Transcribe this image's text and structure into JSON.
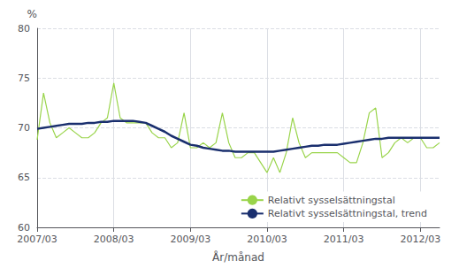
{
  "chart_data": {
    "type": "line",
    "xlabel": "År/månad",
    "ylabel": "%",
    "categories": [
      "2007/03",
      null,
      null,
      null,
      null,
      null,
      null,
      null,
      null,
      null,
      null,
      null,
      "2008/03",
      null,
      null,
      null,
      null,
      null,
      null,
      null,
      null,
      null,
      null,
      null,
      "2009/03",
      null,
      null,
      null,
      null,
      null,
      null,
      null,
      null,
      null,
      null,
      null,
      "2010/03",
      null,
      null,
      null,
      null,
      null,
      null,
      null,
      null,
      null,
      null,
      null,
      "2011/03",
      null,
      null,
      null,
      null,
      null,
      null,
      null,
      null,
      null,
      null,
      null,
      "2012/03",
      null,
      null,
      null
    ],
    "series": [
      {
        "name": "Relativt sysselsättningstal",
        "color": "#99d44a",
        "values": [
          68.8,
          73.5,
          70.5,
          69.0,
          69.5,
          70.0,
          69.5,
          69.0,
          69.0,
          69.5,
          70.5,
          71.0,
          74.5,
          71.0,
          70.5,
          70.5,
          70.5,
          70.5,
          69.5,
          69.0,
          69.0,
          68.0,
          68.5,
          71.5,
          68.0,
          68.0,
          68.5,
          68.0,
          68.5,
          71.5,
          68.5,
          67.0,
          67.0,
          67.5,
          67.5,
          66.5,
          65.5,
          67.0,
          65.5,
          67.5,
          71.0,
          68.5,
          67.0,
          67.5,
          67.5,
          67.5,
          67.5,
          67.5,
          67.0,
          66.5,
          66.5,
          68.5,
          71.5,
          72.0,
          67.0,
          67.5,
          68.5,
          69.0,
          68.5,
          69.0,
          69.0,
          68.0,
          68.0,
          68.5
        ]
      },
      {
        "name": "Relativt sysselsättningstal, trend",
        "color": "#1a2f6e",
        "values": [
          69.9,
          70.0,
          70.1,
          70.2,
          70.3,
          70.4,
          70.4,
          70.4,
          70.5,
          70.5,
          70.6,
          70.6,
          70.7,
          70.7,
          70.7,
          70.7,
          70.6,
          70.5,
          70.2,
          69.9,
          69.6,
          69.2,
          68.9,
          68.6,
          68.3,
          68.2,
          68.0,
          67.9,
          67.8,
          67.7,
          67.7,
          67.6,
          67.6,
          67.6,
          67.6,
          67.6,
          67.6,
          67.6,
          67.7,
          67.8,
          67.9,
          68.0,
          68.1,
          68.2,
          68.2,
          68.3,
          68.3,
          68.3,
          68.4,
          68.5,
          68.6,
          68.7,
          68.8,
          68.9,
          68.9,
          69.0,
          69.0,
          69.0,
          69.0,
          69.0,
          69.0,
          69.0,
          69.0,
          69.0
        ]
      }
    ],
    "ylim": [
      60,
      80
    ],
    "yticks": [
      60,
      65,
      70,
      75,
      80
    ],
    "grid": true,
    "legend": "lower right"
  }
}
